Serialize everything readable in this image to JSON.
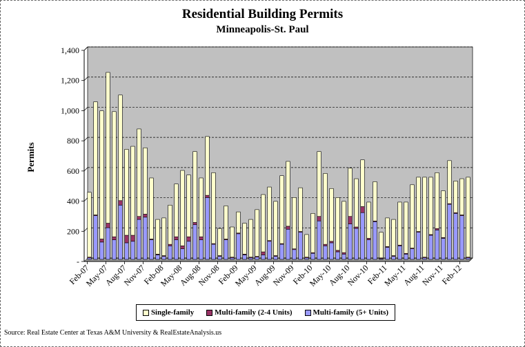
{
  "chart_data": {
    "type": "bar",
    "stacked": true,
    "title": "Residential Building Permits",
    "subtitle": "Minneapolis-St. Paul",
    "ylabel": "Permits",
    "xlabel": "",
    "ylim": [
      0,
      1400
    ],
    "yticks": [
      "-",
      "200",
      "400",
      "600",
      "800",
      "1,000",
      "1,200",
      "1,400"
    ],
    "xtick_labels": [
      "Feb-07",
      "May-07",
      "Aug-07",
      "Nov-07",
      "Feb-08",
      "May-08",
      "Aug-08",
      "Nov-08",
      "Feb-09",
      "May-09",
      "Aug-09",
      "Nov-09",
      "Feb-10",
      "May-10",
      "Aug-10",
      "Nov-10",
      "Feb-11",
      "May-11",
      "Aug-11",
      "Nov-11",
      "Feb-12"
    ],
    "grid": true,
    "legend_position": "bottom",
    "categories": [
      "Feb-07",
      "Mar-07",
      "Apr-07",
      "May-07",
      "Jun-07",
      "Jul-07",
      "Aug-07",
      "Sep-07",
      "Oct-07",
      "Nov-07",
      "Dec-07",
      "Jan-08",
      "Feb-08",
      "Mar-08",
      "Apr-08",
      "May-08",
      "Jun-08",
      "Jul-08",
      "Aug-08",
      "Sep-08",
      "Oct-08",
      "Nov-08",
      "Dec-08",
      "Jan-09",
      "Feb-09",
      "Mar-09",
      "Apr-09",
      "May-09",
      "Jun-09",
      "Jul-09",
      "Aug-09",
      "Sep-09",
      "Oct-09",
      "Nov-09",
      "Dec-09",
      "Jan-10",
      "Feb-10",
      "Mar-10",
      "Apr-10",
      "May-10",
      "Jun-10",
      "Jul-10",
      "Aug-10",
      "Sep-10",
      "Oct-10",
      "Nov-10",
      "Dec-10",
      "Jan-11",
      "Feb-11",
      "Mar-11",
      "Apr-11",
      "May-11",
      "Jun-11",
      "Jul-11",
      "Aug-11",
      "Sep-11",
      "Oct-11",
      "Nov-11",
      "Dec-11",
      "Jan-12",
      "Feb-12",
      "Mar-12"
    ],
    "series": [
      {
        "name": "Multi-family (5+ Units)",
        "color": "#9999FF",
        "values": [
          10,
          290,
          115,
          210,
          130,
          360,
          110,
          120,
          265,
          280,
          130,
          30,
          20,
          90,
          130,
          70,
          120,
          230,
          130,
          410,
          100,
          20,
          130,
          10,
          170,
          30,
          10,
          15,
          30,
          120,
          20,
          100,
          200,
          65,
          180,
          10,
          40,
          255,
          90,
          110,
          50,
          35,
          235,
          205,
          310,
          130,
          250,
          5,
          80,
          20,
          90,
          35,
          70,
          180,
          10,
          160,
          195,
          140,
          365,
          305,
          290,
          10
        ]
      },
      {
        "name": "Multi-family (2-4 Units)",
        "color": "#993366",
        "values": [
          5,
          5,
          20,
          30,
          20,
          30,
          50,
          40,
          20,
          20,
          5,
          5,
          5,
          10,
          20,
          20,
          30,
          15,
          20,
          15,
          5,
          5,
          5,
          5,
          5,
          5,
          5,
          5,
          20,
          5,
          5,
          5,
          20,
          5,
          5,
          5,
          5,
          30,
          10,
          10,
          10,
          10,
          50,
          10,
          40,
          10,
          5,
          5,
          5,
          5,
          5,
          5,
          5,
          5,
          5,
          5,
          10,
          5,
          5,
          5,
          5,
          5
        ]
      },
      {
        "name": "Single-family",
        "color": "#FFFFCC",
        "values": [
          430,
          750,
          850,
          1000,
          830,
          700,
          570,
          590,
          580,
          440,
          405,
          230,
          250,
          260,
          350,
          500,
          410,
          470,
          390,
          390,
          470,
          180,
          220,
          200,
          140,
          205,
          250,
          310,
          380,
          355,
          360,
          450,
          430,
          340,
          290,
          150,
          260,
          430,
          470,
          350,
          350,
          340,
          320,
          320,
          310,
          240,
          260,
          170,
          190,
          240,
          285,
          340,
          420,
          360,
          530,
          380,
          370,
          310,
          285,
          210,
          240,
          530
        ]
      }
    ]
  },
  "legend": {
    "single": "Single-family",
    "multi24": "Multi-family (2-4 Units)",
    "multi5": "Multi-family (5+ Units)"
  },
  "source": "Source: Real Estate Center at Texas A&M University & RealEstateAnalysis.us"
}
